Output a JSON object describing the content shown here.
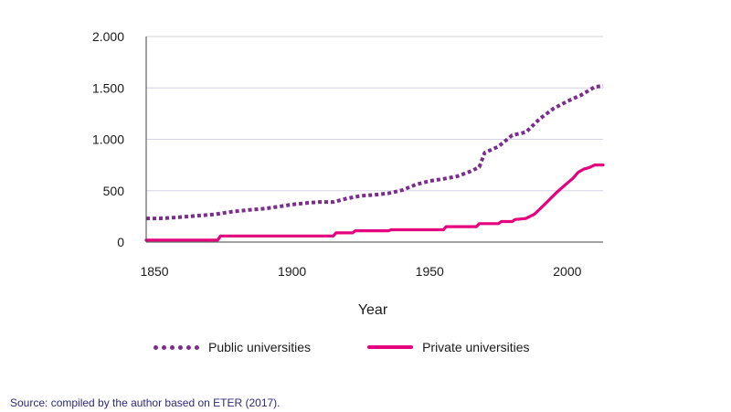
{
  "chart_data": {
    "type": "line",
    "xlabel": "Year",
    "ylabel": "",
    "xlim": [
      1847,
      2013
    ],
    "ylim": [
      0,
      2000
    ],
    "x_ticks": [
      {
        "value": 1850,
        "label": "1850"
      },
      {
        "value": 1900,
        "label": "1900"
      },
      {
        "value": 1950,
        "label": "1950"
      },
      {
        "value": 2000,
        "label": "2000"
      }
    ],
    "y_ticks": [
      {
        "value": 0,
        "label": "0"
      },
      {
        "value": 500,
        "label": "500"
      },
      {
        "value": 1000,
        "label": "1.000"
      },
      {
        "value": 1500,
        "label": "1.500"
      },
      {
        "value": 2000,
        "label": "2.000"
      }
    ],
    "grid": "horizontal",
    "legend_position": "bottom",
    "series": [
      {
        "name": "Public universities",
        "color": "#7b2d8e",
        "style": "dotted",
        "x": [
          1847,
          1852,
          1858,
          1865,
          1872,
          1878,
          1885,
          1890,
          1895,
          1900,
          1905,
          1910,
          1915,
          1920,
          1925,
          1930,
          1935,
          1940,
          1945,
          1950,
          1955,
          1960,
          1965,
          1968,
          1970,
          1975,
          1980,
          1985,
          1990,
          1995,
          2000,
          2005,
          2010,
          2013
        ],
        "y": [
          230,
          230,
          240,
          255,
          270,
          295,
          315,
          325,
          345,
          365,
          380,
          390,
          390,
          425,
          450,
          460,
          475,
          505,
          560,
          595,
          615,
          640,
          690,
          730,
          870,
          930,
          1040,
          1070,
          1200,
          1300,
          1370,
          1430,
          1510,
          1520
        ]
      },
      {
        "name": "Private universities",
        "color": "#e5007e",
        "style": "solid",
        "x": [
          1847,
          1873,
          1874,
          1915,
          1916,
          1922,
          1923,
          1935,
          1936,
          1955,
          1956,
          1967,
          1968,
          1975,
          1976,
          1980,
          1981,
          1985,
          1988,
          1990,
          1993,
          1996,
          1999,
          2002,
          2004,
          2006,
          2008,
          2010,
          2013
        ],
        "y": [
          20,
          20,
          60,
          60,
          90,
          90,
          110,
          110,
          120,
          120,
          150,
          150,
          180,
          180,
          200,
          200,
          220,
          230,
          270,
          320,
          400,
          480,
          550,
          620,
          680,
          710,
          725,
          750,
          750
        ]
      }
    ]
  },
  "source": "Source: compiled by the author based on ETER (2017)."
}
